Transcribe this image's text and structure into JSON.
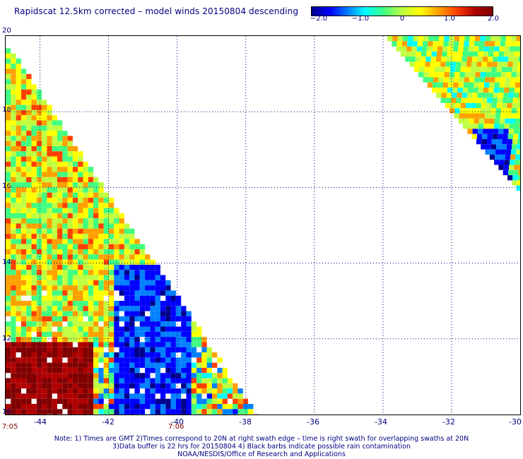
{
  "title": "Rapidscat 12.5km corrected – model winds 20150804 descending",
  "colorbar": {
    "tick_labels": [
      "−2.0",
      "−1.0",
      "0",
      "1.0",
      "2.0"
    ],
    "colors": [
      "#00008b",
      "#0000ff",
      "#0080ff",
      "#00ffff",
      "#40ff80",
      "#c0ff40",
      "#ffff00",
      "#ffa000",
      "#ff4000",
      "#b00000",
      "#800000"
    ],
    "range": [
      -2.0,
      2.0
    ]
  },
  "map": {
    "lon_range": [
      -45,
      -30
    ],
    "lat_range": [
      10,
      20
    ],
    "lon_labels": [
      "-44",
      "-42",
      "-40",
      "-38",
      "-36",
      "-34",
      "-32",
      "-30"
    ],
    "lat_labels": [
      "20",
      "18",
      "16",
      "14",
      "12",
      "10"
    ],
    "time_labels": [
      "7:05",
      "7:06"
    ]
  },
  "notes": [
    "Note: 1) Times are GMT 2)Times correspond to 20N at right swath edge – time is right swath for overlapping swaths at 20N",
    "3)Data buffer is 22 hrs for 20150804 4) Black barbs indicate possible rain contamination",
    "NOAA/NESDIS/Office of Research and Applications"
  ]
}
